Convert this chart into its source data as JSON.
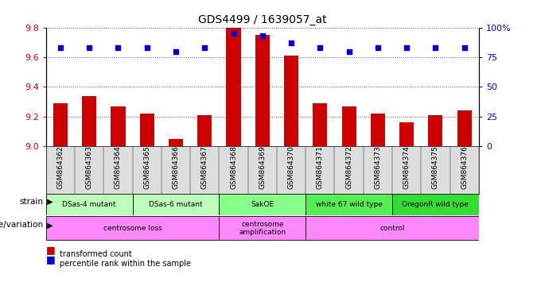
{
  "title": "GDS4499 / 1639057_at",
  "samples": [
    "GSM864362",
    "GSM864363",
    "GSM864364",
    "GSM864365",
    "GSM864366",
    "GSM864367",
    "GSM864368",
    "GSM864369",
    "GSM864370",
    "GSM864371",
    "GSM864372",
    "GSM864373",
    "GSM864374",
    "GSM864375",
    "GSM864376"
  ],
  "transformed_counts": [
    9.29,
    9.34,
    9.27,
    9.22,
    9.05,
    9.21,
    9.8,
    9.75,
    9.61,
    9.29,
    9.27,
    9.22,
    9.16,
    9.21,
    9.24
  ],
  "percentile_ranks": [
    83,
    83,
    83,
    83,
    80,
    83,
    95,
    93,
    87,
    83,
    80,
    83,
    83,
    83,
    83
  ],
  "ylim_left": [
    9.0,
    9.8
  ],
  "ylim_right": [
    0,
    100
  ],
  "yticks_left": [
    9.0,
    9.2,
    9.4,
    9.6,
    9.8
  ],
  "yticks_right": [
    0,
    25,
    50,
    75,
    100
  ],
  "bar_color": "#cc0000",
  "dot_color": "#0000cc",
  "bar_bottom": 9.0,
  "strain_groups": [
    {
      "label": "DSas-4 mutant",
      "start": 0,
      "end": 2,
      "color": "#bbffbb"
    },
    {
      "label": "DSas-6 mutant",
      "start": 3,
      "end": 5,
      "color": "#bbffbb"
    },
    {
      "label": "SakOE",
      "start": 6,
      "end": 8,
      "color": "#88ff88"
    },
    {
      "label": "white 67 wild type",
      "start": 9,
      "end": 11,
      "color": "#55ee55"
    },
    {
      "label": "OregonR wild type",
      "start": 12,
      "end": 14,
      "color": "#33dd33"
    }
  ],
  "genotype_groups": [
    {
      "label": "centrosome loss",
      "start": 0,
      "end": 5,
      "color": "#ff88ff"
    },
    {
      "label": "centrosome\namplification",
      "start": 6,
      "end": 8,
      "color": "#ff88ff"
    },
    {
      "label": "control",
      "start": 9,
      "end": 14,
      "color": "#ff88ff"
    }
  ],
  "strain_label": "strain",
  "genotype_label": "genotype/variation",
  "legend_bar": "transformed count",
  "legend_dot": "percentile rank within the sample",
  "tick_label_color_left": "#cc0000",
  "tick_label_color_right": "#0000cc",
  "sample_band_color": "#dddddd",
  "grid_color": "#555555"
}
